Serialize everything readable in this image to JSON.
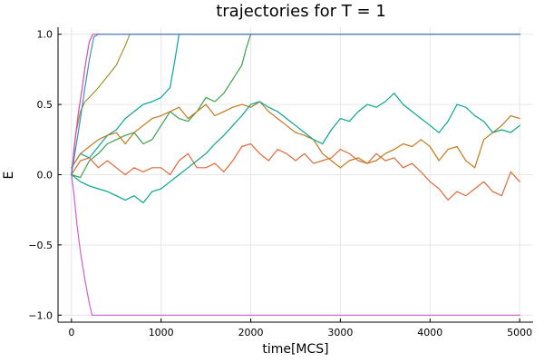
{
  "chart_data": {
    "type": "line",
    "title": "trajectories for T = 1",
    "xlabel": "time[MCS]",
    "ylabel": "E",
    "xlim": [
      -150,
      5150
    ],
    "ylim": [
      -1.05,
      1.05
    ],
    "xticks": [
      0,
      1000,
      2000,
      3000,
      4000,
      5000
    ],
    "yticks": [
      -1.0,
      -0.5,
      0.0,
      0.5,
      1.0
    ],
    "ytick_labels": [
      "−1.0",
      "−0.5",
      "0.0",
      "0.5",
      "1.0"
    ],
    "grid": true,
    "legend": false,
    "series": [
      {
        "color": "#0aa5a0",
        "x": [
          0,
          100,
          200,
          300,
          400,
          500,
          600,
          700,
          800,
          900,
          1000,
          1100,
          1150,
          1200,
          1300,
          2000,
          3000,
          4000,
          5000
        ],
        "y": [
          0.05,
          0.15,
          0.12,
          0.2,
          0.28,
          0.32,
          0.4,
          0.45,
          0.5,
          0.52,
          0.55,
          0.62,
          0.8,
          1.0,
          1.0,
          1.0,
          1.0,
          1.0,
          1.0
        ]
      },
      {
        "color": "#3da04a",
        "x": [
          0,
          100,
          200,
          300,
          400,
          500,
          600,
          700,
          800,
          900,
          1000,
          1100,
          1200,
          1300,
          1400,
          1500,
          1600,
          1700,
          1800,
          1900,
          1950,
          2000,
          3000,
          4000,
          5000
        ],
        "y": [
          0.0,
          -0.02,
          0.1,
          0.15,
          0.22,
          0.25,
          0.28,
          0.3,
          0.22,
          0.25,
          0.35,
          0.45,
          0.4,
          0.38,
          0.45,
          0.55,
          0.52,
          0.58,
          0.68,
          0.78,
          0.9,
          1.0,
          1.0,
          1.0,
          1.0
        ]
      },
      {
        "color": "#e06a3a",
        "x": [
          0,
          100,
          200,
          300,
          400,
          500,
          600,
          700,
          800,
          900,
          1000,
          1100,
          1200,
          1300,
          1400,
          1500,
          1600,
          1700,
          1800,
          1900,
          2000,
          2100,
          2200,
          2300,
          2400,
          2500,
          2600,
          2700,
          2800,
          2900,
          3000,
          3100,
          3200,
          3300,
          3400,
          3500,
          3600,
          3700,
          3800,
          3900,
          4000,
          4100,
          4200,
          4300,
          4400,
          4500,
          4600,
          4700,
          4800,
          4900,
          5000
        ],
        "y": [
          0.0,
          0.1,
          0.12,
          0.05,
          0.1,
          0.05,
          0.0,
          0.05,
          0.02,
          0.05,
          0.05,
          0.0,
          0.1,
          0.15,
          0.05,
          0.05,
          0.08,
          0.02,
          0.1,
          0.2,
          0.22,
          0.15,
          0.1,
          0.18,
          0.15,
          0.1,
          0.15,
          0.08,
          0.1,
          0.12,
          0.18,
          0.15,
          0.1,
          0.08,
          0.15,
          0.1,
          0.12,
          0.05,
          0.08,
          0.02,
          -0.05,
          -0.1,
          -0.18,
          -0.12,
          -0.15,
          -0.1,
          -0.05,
          -0.12,
          -0.15,
          0.02,
          -0.05
        ]
      },
      {
        "color": "#c27a1c",
        "x": [
          0,
          100,
          200,
          300,
          400,
          500,
          600,
          700,
          800,
          900,
          1000,
          1100,
          1200,
          1300,
          1400,
          1500,
          1600,
          1700,
          1800,
          1900,
          2000,
          2100,
          2200,
          2300,
          2400,
          2500,
          2600,
          2700,
          2800,
          2900,
          3000,
          3100,
          3200,
          3300,
          3400,
          3500,
          3600,
          3700,
          3800,
          3900,
          4000,
          4100,
          4200,
          4300,
          4400,
          4500,
          4600,
          4700,
          4800,
          4900,
          5000
        ],
        "y": [
          0.05,
          0.15,
          0.2,
          0.25,
          0.28,
          0.3,
          0.22,
          0.3,
          0.35,
          0.4,
          0.42,
          0.45,
          0.48,
          0.4,
          0.45,
          0.5,
          0.42,
          0.45,
          0.48,
          0.5,
          0.48,
          0.52,
          0.45,
          0.4,
          0.35,
          0.3,
          0.28,
          0.25,
          0.15,
          0.1,
          0.05,
          0.1,
          0.12,
          0.08,
          0.1,
          0.15,
          0.18,
          0.22,
          0.2,
          0.25,
          0.2,
          0.1,
          0.18,
          0.2,
          0.1,
          0.05,
          0.25,
          0.3,
          0.35,
          0.42,
          0.4
        ]
      },
      {
        "color": "#0aa58e",
        "x": [
          0,
          100,
          200,
          300,
          400,
          500,
          600,
          700,
          800,
          900,
          1000,
          1100,
          1200,
          1300,
          1400,
          1500,
          1600,
          1700,
          1800,
          1900,
          2000,
          2100,
          2200,
          2300,
          2400,
          2500,
          2600,
          2700,
          2800,
          2900,
          3000,
          3100,
          3200,
          3300,
          3400,
          3500,
          3600,
          3700,
          3800,
          3900,
          4000,
          4100,
          4200,
          4300,
          4400,
          4500,
          4600,
          4700,
          4800,
          4900,
          5000
        ],
        "y": [
          0.0,
          -0.05,
          -0.08,
          -0.1,
          -0.12,
          -0.15,
          -0.18,
          -0.15,
          -0.2,
          -0.12,
          -0.1,
          -0.05,
          0.0,
          0.05,
          0.1,
          0.15,
          0.22,
          0.28,
          0.35,
          0.42,
          0.5,
          0.52,
          0.48,
          0.45,
          0.4,
          0.35,
          0.3,
          0.25,
          0.22,
          0.32,
          0.4,
          0.38,
          0.45,
          0.5,
          0.48,
          0.52,
          0.58,
          0.5,
          0.45,
          0.4,
          0.35,
          0.3,
          0.38,
          0.5,
          0.48,
          0.42,
          0.38,
          0.3,
          0.32,
          0.3,
          0.35
        ]
      },
      {
        "color": "#a0962a",
        "x": [
          0,
          50,
          100,
          150,
          200,
          300,
          400,
          500,
          550,
          600,
          650,
          700,
          2000,
          3000,
          4000,
          5000
        ],
        "y": [
          0.0,
          0.3,
          0.45,
          0.52,
          0.55,
          0.62,
          0.7,
          0.78,
          0.85,
          0.92,
          1.0,
          1.0,
          1.0,
          1.0,
          1.0,
          1.0
        ]
      },
      {
        "color": "#d060d0",
        "x": [
          0,
          30,
          60,
          100,
          150,
          200,
          230,
          260,
          300,
          1000,
          2000,
          3000,
          4000,
          5000
        ],
        "y": [
          0.0,
          -0.15,
          -0.35,
          -0.55,
          -0.75,
          -0.92,
          -1.0,
          -1.0,
          -1.0,
          -1.0,
          -1.0,
          -1.0,
          -1.0,
          -1.0
        ]
      },
      {
        "color": "#e04aa0",
        "x": [
          0,
          40,
          80,
          120,
          160,
          200,
          240,
          300,
          1000,
          2000,
          3000,
          4000,
          5000
        ],
        "y": [
          0.0,
          0.25,
          0.45,
          0.62,
          0.8,
          0.95,
          1.0,
          1.0,
          1.0,
          1.0,
          1.0,
          1.0,
          1.0
        ]
      },
      {
        "color": "#3a8fd0",
        "x": [
          0,
          50,
          100,
          150,
          200,
          250,
          300,
          1000,
          2000,
          3000,
          4000,
          5000
        ],
        "y": [
          0.0,
          0.2,
          0.4,
          0.62,
          0.82,
          0.98,
          1.0,
          1.0,
          1.0,
          1.0,
          1.0,
          1.0
        ]
      }
    ]
  }
}
